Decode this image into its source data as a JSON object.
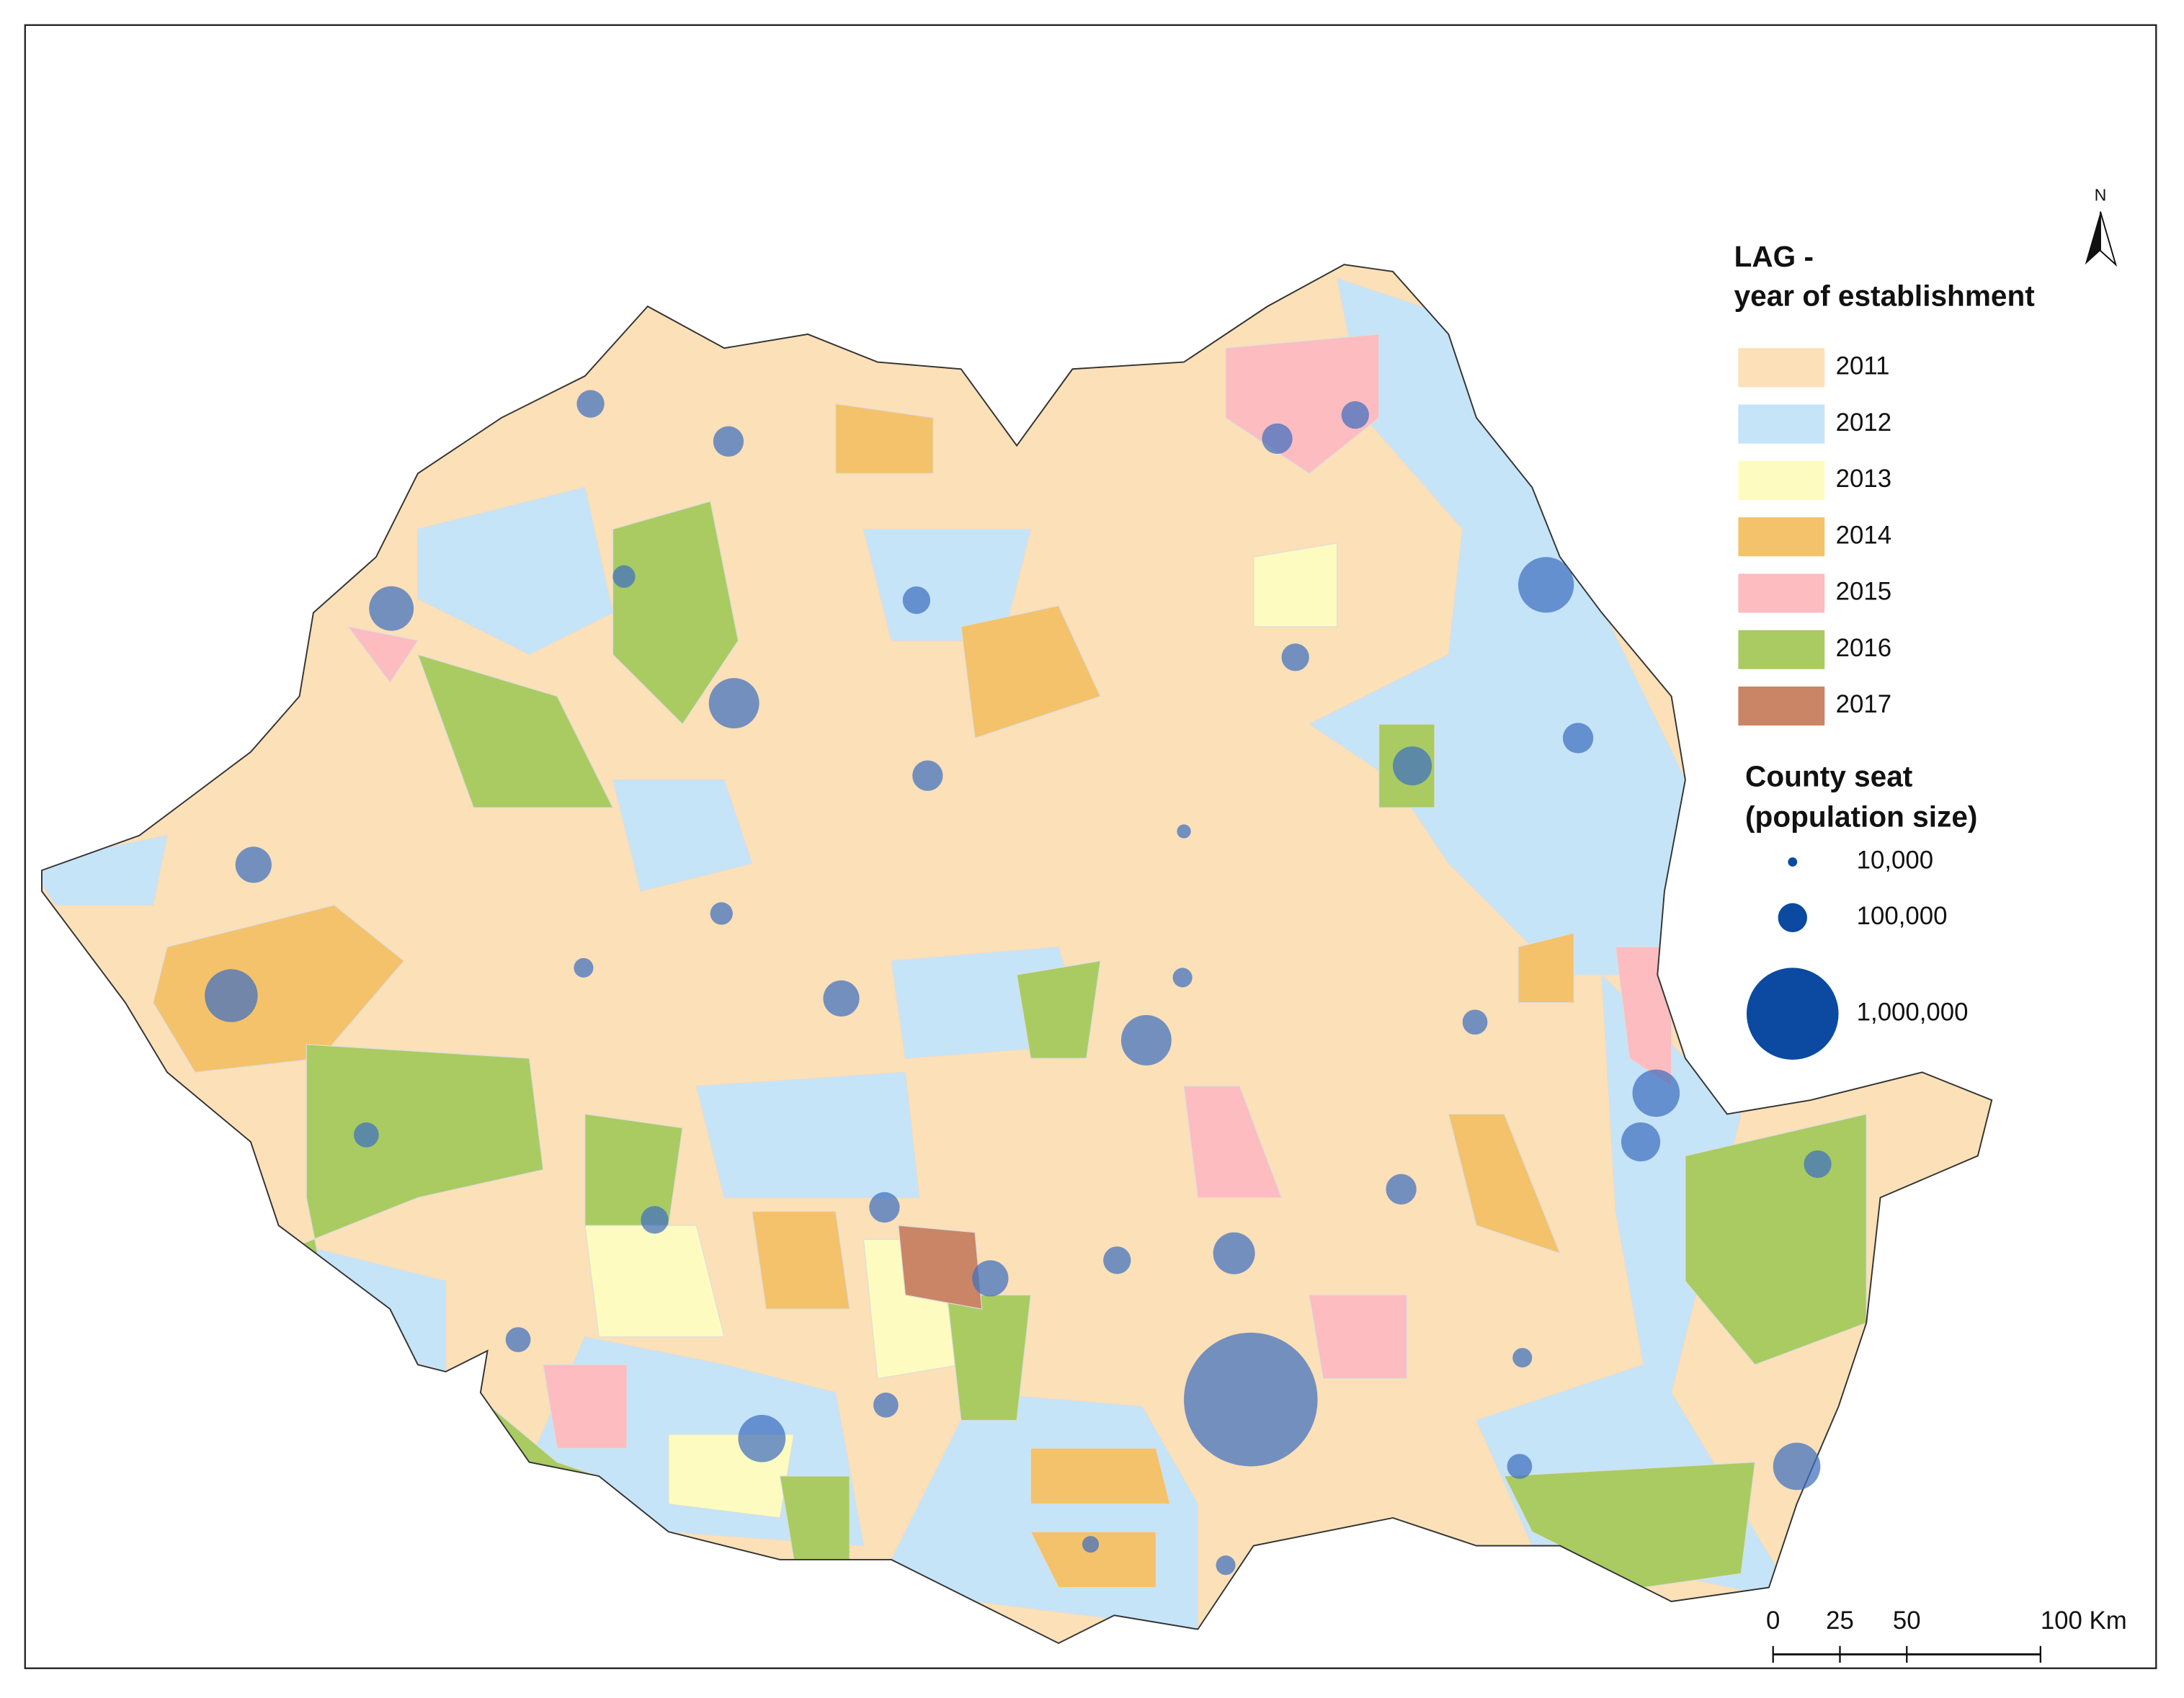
{
  "map": {
    "north": "N",
    "legend": {
      "title": [
        "LAG -",
        "year of establishment"
      ],
      "items": [
        {
          "label": "2011",
          "color": "#fbe0b8"
        },
        {
          "label": "2012",
          "color": "#c5e4f8"
        },
        {
          "label": "2013",
          "color": "#fdfbbf"
        },
        {
          "label": "2014",
          "color": "#f3c26b"
        },
        {
          "label": "2015",
          "color": "#fcbcc0"
        },
        {
          "label": "2016",
          "color": "#a9cb62"
        },
        {
          "label": "2017",
          "color": "#c98566"
        }
      ]
    },
    "county_seats": {
      "title": [
        "County seat",
        "(population size)"
      ],
      "color": "#3f6fc0",
      "legend_color": "#0b4aa0",
      "sizes": [
        {
          "value": 10000,
          "label": "10,000"
        },
        {
          "value": 100000,
          "label": "100,000"
        },
        {
          "value": 1000000,
          "label": "1,000,000"
        }
      ],
      "population": [
        90000,
        110000,
        60000,
        90000,
        235000,
        300000,
        110000,
        23000,
        155000,
        60000,
        45000,
        331000,
        155000,
        45000,
        300000,
        110000,
        90000,
        367000,
        90000,
        110000,
        180000,
        74000,
        265000,
        180000,
        110000,
        90000,
        74000,
        90000,
        110000,
        155000,
        90000,
        207000,
        74000,
        74000,
        265000,
        2116000,
        45000,
        74000,
        265000,
        33000,
        45000
      ]
    },
    "scale": {
      "ticks": [
        0,
        25,
        50,
        {
          "value": 100,
          "label": "100 Km"
        }
      ]
    }
  }
}
